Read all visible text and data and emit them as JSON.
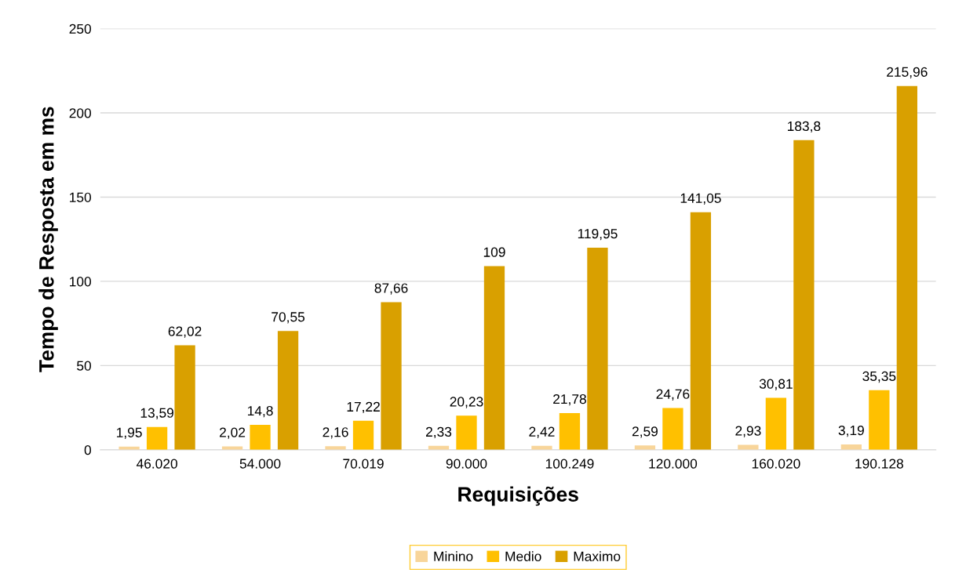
{
  "chart_data": {
    "type": "bar",
    "xlabel": "Requisições",
    "ylabel": "Tempo de Resposta em ms",
    "categories": [
      "46.020",
      "54.000",
      "70.019",
      "90.000",
      "100.249",
      "120.000",
      "160.020",
      "190.128"
    ],
    "series": [
      {
        "name": "Minino",
        "color": "#f8d59a",
        "values": [
          1.95,
          2.02,
          2.16,
          2.33,
          2.42,
          2.59,
          2.93,
          3.19
        ],
        "value_labels": [
          "1,95",
          "2,02",
          "2,16",
          "2,33",
          "2,42",
          "2,59",
          "2,93",
          "3,19"
        ]
      },
      {
        "name": "Medio",
        "color": "#ffc000",
        "values": [
          13.59,
          14.8,
          17.22,
          20.23,
          21.78,
          24.76,
          30.81,
          35.35
        ],
        "value_labels": [
          "13,59",
          "14,8",
          "17,22",
          "20,23",
          "21,78",
          "24,76",
          "30,81",
          "35,35"
        ]
      },
      {
        "name": "Maximo",
        "color": "#d9a000",
        "values": [
          62.02,
          70.55,
          87.66,
          109,
          119.95,
          141.05,
          183.8,
          215.96
        ],
        "value_labels": [
          "62,02",
          "70,55",
          "87,66",
          "109",
          "119,95",
          "141,05",
          "183,8",
          "215,96"
        ]
      }
    ],
    "ylim": [
      0,
      250
    ],
    "yticks": [
      0,
      50,
      100,
      150,
      200,
      250
    ],
    "grid": "y",
    "legend": "bottom"
  }
}
